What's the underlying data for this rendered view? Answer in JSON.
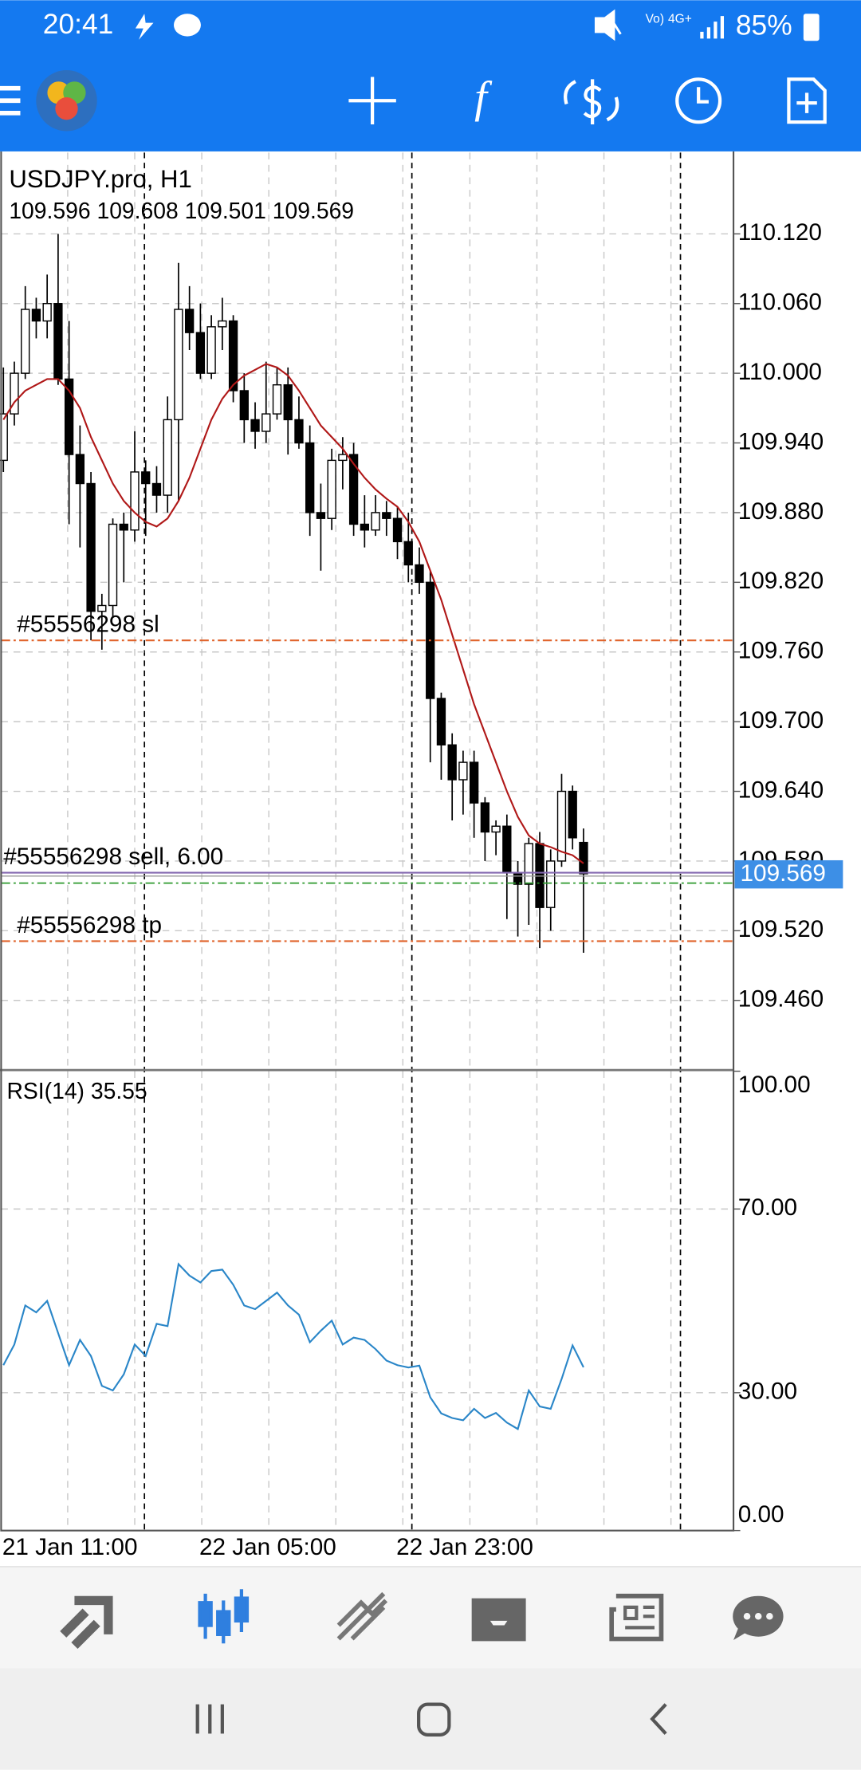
{
  "status_bar": {
    "time": "20:41",
    "network": "4G+",
    "battery": "85%"
  },
  "chart_data": [
    {
      "type": "candlestick",
      "title": "USDJPY.pro, H1",
      "subtitle": "109.596 109.608 109.501 109.569",
      "categories": [
        "21 Jan 11:00",
        null,
        null,
        null,
        null,
        null,
        null,
        null,
        null,
        null,
        null,
        null,
        null,
        null,
        null,
        null,
        null,
        null,
        "22 Jan 05:00",
        null,
        null,
        null,
        null,
        null,
        null,
        null,
        null,
        null,
        null,
        null,
        null,
        null,
        null,
        null,
        null,
        null,
        "22 Jan 23:00",
        null,
        null,
        null,
        null,
        null,
        null,
        null,
        null,
        null,
        null,
        null,
        null,
        null,
        null,
        null,
        null,
        null
      ],
      "open": [
        109.925,
        109.965,
        110.0,
        110.055,
        110.045,
        110.06,
        109.995,
        109.93,
        109.905,
        109.795,
        109.8,
        109.87,
        109.865,
        109.915,
        109.905,
        109.895,
        109.96,
        110.055,
        110.035,
        110.0,
        110.04,
        110.045,
        109.985,
        109.96,
        109.95,
        109.965,
        109.99,
        109.96,
        109.94,
        109.88,
        109.875,
        109.925,
        109.93,
        109.87,
        109.865,
        109.88,
        109.875,
        109.855,
        109.835,
        109.82,
        109.72,
        109.68,
        109.65,
        109.665,
        109.63,
        109.605,
        109.61,
        109.57,
        109.56,
        109.595,
        109.54,
        109.58,
        109.64,
        109.596
      ],
      "high": [
        110.005,
        110.01,
        110.075,
        110.065,
        110.085,
        110.12,
        110.045,
        109.955,
        109.915,
        109.81,
        109.875,
        109.88,
        109.95,
        109.925,
        109.92,
        109.98,
        110.095,
        110.075,
        110.06,
        110.05,
        110.065,
        110.05,
        110.0,
        109.975,
        110.01,
        110.005,
        110.005,
        109.98,
        109.955,
        109.905,
        109.935,
        109.945,
        109.94,
        109.895,
        109.895,
        109.89,
        109.885,
        109.88,
        109.85,
        109.83,
        109.725,
        109.69,
        109.675,
        109.675,
        109.635,
        109.615,
        109.62,
        109.58,
        109.6,
        109.605,
        109.59,
        109.655,
        109.645,
        109.608
      ],
      "low": [
        109.915,
        109.955,
        109.995,
        110.03,
        110.03,
        109.99,
        109.87,
        109.85,
        109.77,
        109.762,
        109.79,
        109.82,
        109.855,
        109.86,
        109.88,
        109.88,
        109.89,
        110.02,
        109.995,
        109.995,
        110.02,
        109.975,
        109.94,
        109.935,
        109.94,
        109.96,
        109.93,
        109.935,
        109.86,
        109.83,
        109.865,
        109.9,
        109.86,
        109.85,
        109.86,
        109.86,
        109.84,
        109.82,
        109.81,
        109.665,
        109.65,
        109.615,
        109.62,
        109.6,
        109.58,
        109.585,
        109.53,
        109.515,
        109.525,
        109.505,
        109.52,
        109.575,
        109.59,
        109.501
      ],
      "close": [
        109.965,
        110.0,
        110.055,
        110.045,
        110.06,
        109.995,
        109.93,
        109.905,
        109.795,
        109.8,
        109.87,
        109.865,
        109.915,
        109.905,
        109.895,
        109.96,
        110.055,
        110.035,
        110.0,
        110.04,
        110.045,
        109.985,
        109.96,
        109.95,
        109.965,
        109.99,
        109.96,
        109.94,
        109.88,
        109.875,
        109.925,
        109.93,
        109.87,
        109.865,
        109.88,
        109.875,
        109.855,
        109.835,
        109.82,
        109.72,
        109.68,
        109.65,
        109.665,
        109.63,
        109.605,
        109.61,
        109.57,
        109.56,
        109.595,
        109.54,
        109.58,
        109.64,
        109.6,
        109.569
      ],
      "up_color": "#ffffff",
      "down_color": "#000000",
      "moving_average": {
        "color": "#b01818",
        "values": [
          109.96,
          109.975,
          109.985,
          109.99,
          109.995,
          109.995,
          109.985,
          109.97,
          109.945,
          109.925,
          109.905,
          109.89,
          109.88,
          109.872,
          109.868,
          109.875,
          109.89,
          109.91,
          109.935,
          109.96,
          109.978,
          109.99,
          109.998,
          110.003,
          110.008,
          110.005,
          109.998,
          109.985,
          109.97,
          109.955,
          109.945,
          109.935,
          109.922,
          109.91,
          109.9,
          109.892,
          109.885,
          109.872,
          109.855,
          109.83,
          109.805,
          109.775,
          109.745,
          109.715,
          109.69,
          109.665,
          109.64,
          109.618,
          109.602,
          109.595,
          109.592,
          109.588,
          109.585,
          109.578
        ]
      },
      "levels": [
        {
          "label": "#55556298 sl",
          "value": 109.77,
          "color": "#e0642c",
          "style": "dash-dot"
        },
        {
          "label": "#55556298 sell, 6.00",
          "value": 109.57,
          "color": "#8468b0",
          "style": "solid"
        },
        {
          "label": "#55556298 tp",
          "value": 109.511,
          "color": "#e0642c",
          "style": "dash-dot"
        }
      ],
      "ask_line": {
        "value": 109.561,
        "color": "#2e9a2e"
      },
      "last_price": {
        "value": 109.569,
        "label": "109.569",
        "color": "#3d8fe6"
      },
      "ylim": [
        109.4,
        110.19
      ],
      "yticks": [
        {
          "value": 110.12,
          "label": "110.120"
        },
        {
          "value": 110.06,
          "label": "110.060"
        },
        {
          "value": 110.0,
          "label": "110.000"
        },
        {
          "value": 109.94,
          "label": "109.940"
        },
        {
          "value": 109.88,
          "label": "109.880"
        },
        {
          "value": 109.82,
          "label": "109.820"
        },
        {
          "value": 109.76,
          "label": "109.760"
        },
        {
          "value": 109.7,
          "label": "109.700"
        },
        {
          "value": 109.64,
          "label": "109.640"
        },
        {
          "value": 109.58,
          "label": "109.580"
        },
        {
          "value": 109.52,
          "label": "109.520"
        },
        {
          "value": 109.46,
          "label": "109.460"
        }
      ],
      "grid": true
    },
    {
      "type": "line",
      "title": "RSI(14) 35.55",
      "color": "#2a86c8",
      "values": [
        36.0,
        40.5,
        49.0,
        47.5,
        50.0,
        43.0,
        36.0,
        41.5,
        38.0,
        31.5,
        30.5,
        34.0,
        40.5,
        38.0,
        45.0,
        44.5,
        58.0,
        55.5,
        54.0,
        56.5,
        56.8,
        53.5,
        49.0,
        48.2,
        50.0,
        51.8,
        49.0,
        47.0,
        41.0,
        43.5,
        45.7,
        40.5,
        42.0,
        41.5,
        39.5,
        37.0,
        36.0,
        35.5,
        35.9,
        29.0,
        25.5,
        24.5,
        24.0,
        26.5,
        24.5,
        25.6,
        23.5,
        22.1,
        30.5,
        27.0,
        26.5,
        33.0,
        40.3,
        35.55
      ],
      "ylim": [
        0,
        100
      ],
      "yticks": [
        {
          "value": 0,
          "label": "0.00"
        },
        {
          "value": 30,
          "label": "30.00"
        },
        {
          "value": 70,
          "label": "70.00"
        },
        {
          "value": 100,
          "label": "100.00"
        }
      ],
      "grid": true
    }
  ]
}
